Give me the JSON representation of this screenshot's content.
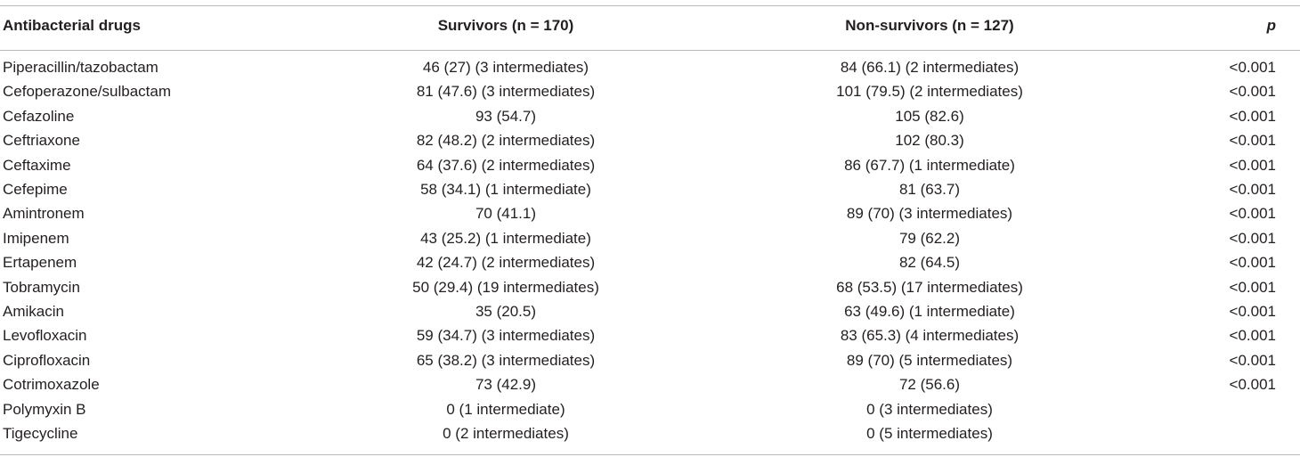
{
  "header": {
    "col_drug": "Antibacterial drugs",
    "col_survivors": "Survivors (n = 170)",
    "col_nonsurvivors": "Non-survivors (n = 127)",
    "col_p": "p"
  },
  "rows": [
    {
      "drug": "Piperacillin/tazobactam",
      "survivors": "46 (27) (3 intermediates)",
      "nonsurvivors": "84 (66.1) (2 intermediates)",
      "p": "<0.001"
    },
    {
      "drug": "Cefoperazone/sulbactam",
      "survivors": "81 (47.6) (3 intermediates)",
      "nonsurvivors": "101 (79.5) (2 intermediates)",
      "p": "<0.001"
    },
    {
      "drug": "Cefazoline",
      "survivors": "93 (54.7)",
      "nonsurvivors": "105 (82.6)",
      "p": "<0.001"
    },
    {
      "drug": "Ceftriaxone",
      "survivors": "82 (48.2) (2 intermediates)",
      "nonsurvivors": "102 (80.3)",
      "p": "<0.001"
    },
    {
      "drug": "Ceftaxime",
      "survivors": "64 (37.6) (2 intermediates)",
      "nonsurvivors": "86 (67.7) (1 intermediate)",
      "p": "<0.001"
    },
    {
      "drug": "Cefepime",
      "survivors": "58 (34.1) (1 intermediate)",
      "nonsurvivors": "81 (63.7)",
      "p": "<0.001"
    },
    {
      "drug": "Amintronem",
      "survivors": "70 (41.1)",
      "nonsurvivors": "89 (70) (3 intermediates)",
      "p": "<0.001"
    },
    {
      "drug": "Imipenem",
      "survivors": "43 (25.2) (1 intermediate)",
      "nonsurvivors": "79 (62.2)",
      "p": "<0.001"
    },
    {
      "drug": "Ertapenem",
      "survivors": "42 (24.7) (2 intermediates)",
      "nonsurvivors": "82 (64.5)",
      "p": "<0.001"
    },
    {
      "drug": "Tobramycin",
      "survivors": "50 (29.4) (19 intermediates)",
      "nonsurvivors": "68 (53.5) (17 intermediates)",
      "p": "<0.001"
    },
    {
      "drug": "Amikacin",
      "survivors": "35 (20.5)",
      "nonsurvivors": "63 (49.6) (1 intermediate)",
      "p": "<0.001"
    },
    {
      "drug": "Levofloxacin",
      "survivors": "59 (34.7) (3 intermediates)",
      "nonsurvivors": "83 (65.3) (4 intermediates)",
      "p": "<0.001"
    },
    {
      "drug": "Ciprofloxacin",
      "survivors": "65 (38.2) (3 intermediates)",
      "nonsurvivors": "89 (70) (5 intermediates)",
      "p": "<0.001"
    },
    {
      "drug": "Cotrimoxazole",
      "survivors": "73 (42.9)",
      "nonsurvivors": "72 (56.6)",
      "p": "<0.001"
    },
    {
      "drug": "Polymyxin B",
      "survivors": "0 (1 intermediate)",
      "nonsurvivors": "0 (3 intermediates)",
      "p": ""
    },
    {
      "drug": "Tigecycline",
      "survivors": "0 (2 intermediates)",
      "nonsurvivors": "0 (5 intermediates)",
      "p": ""
    }
  ]
}
